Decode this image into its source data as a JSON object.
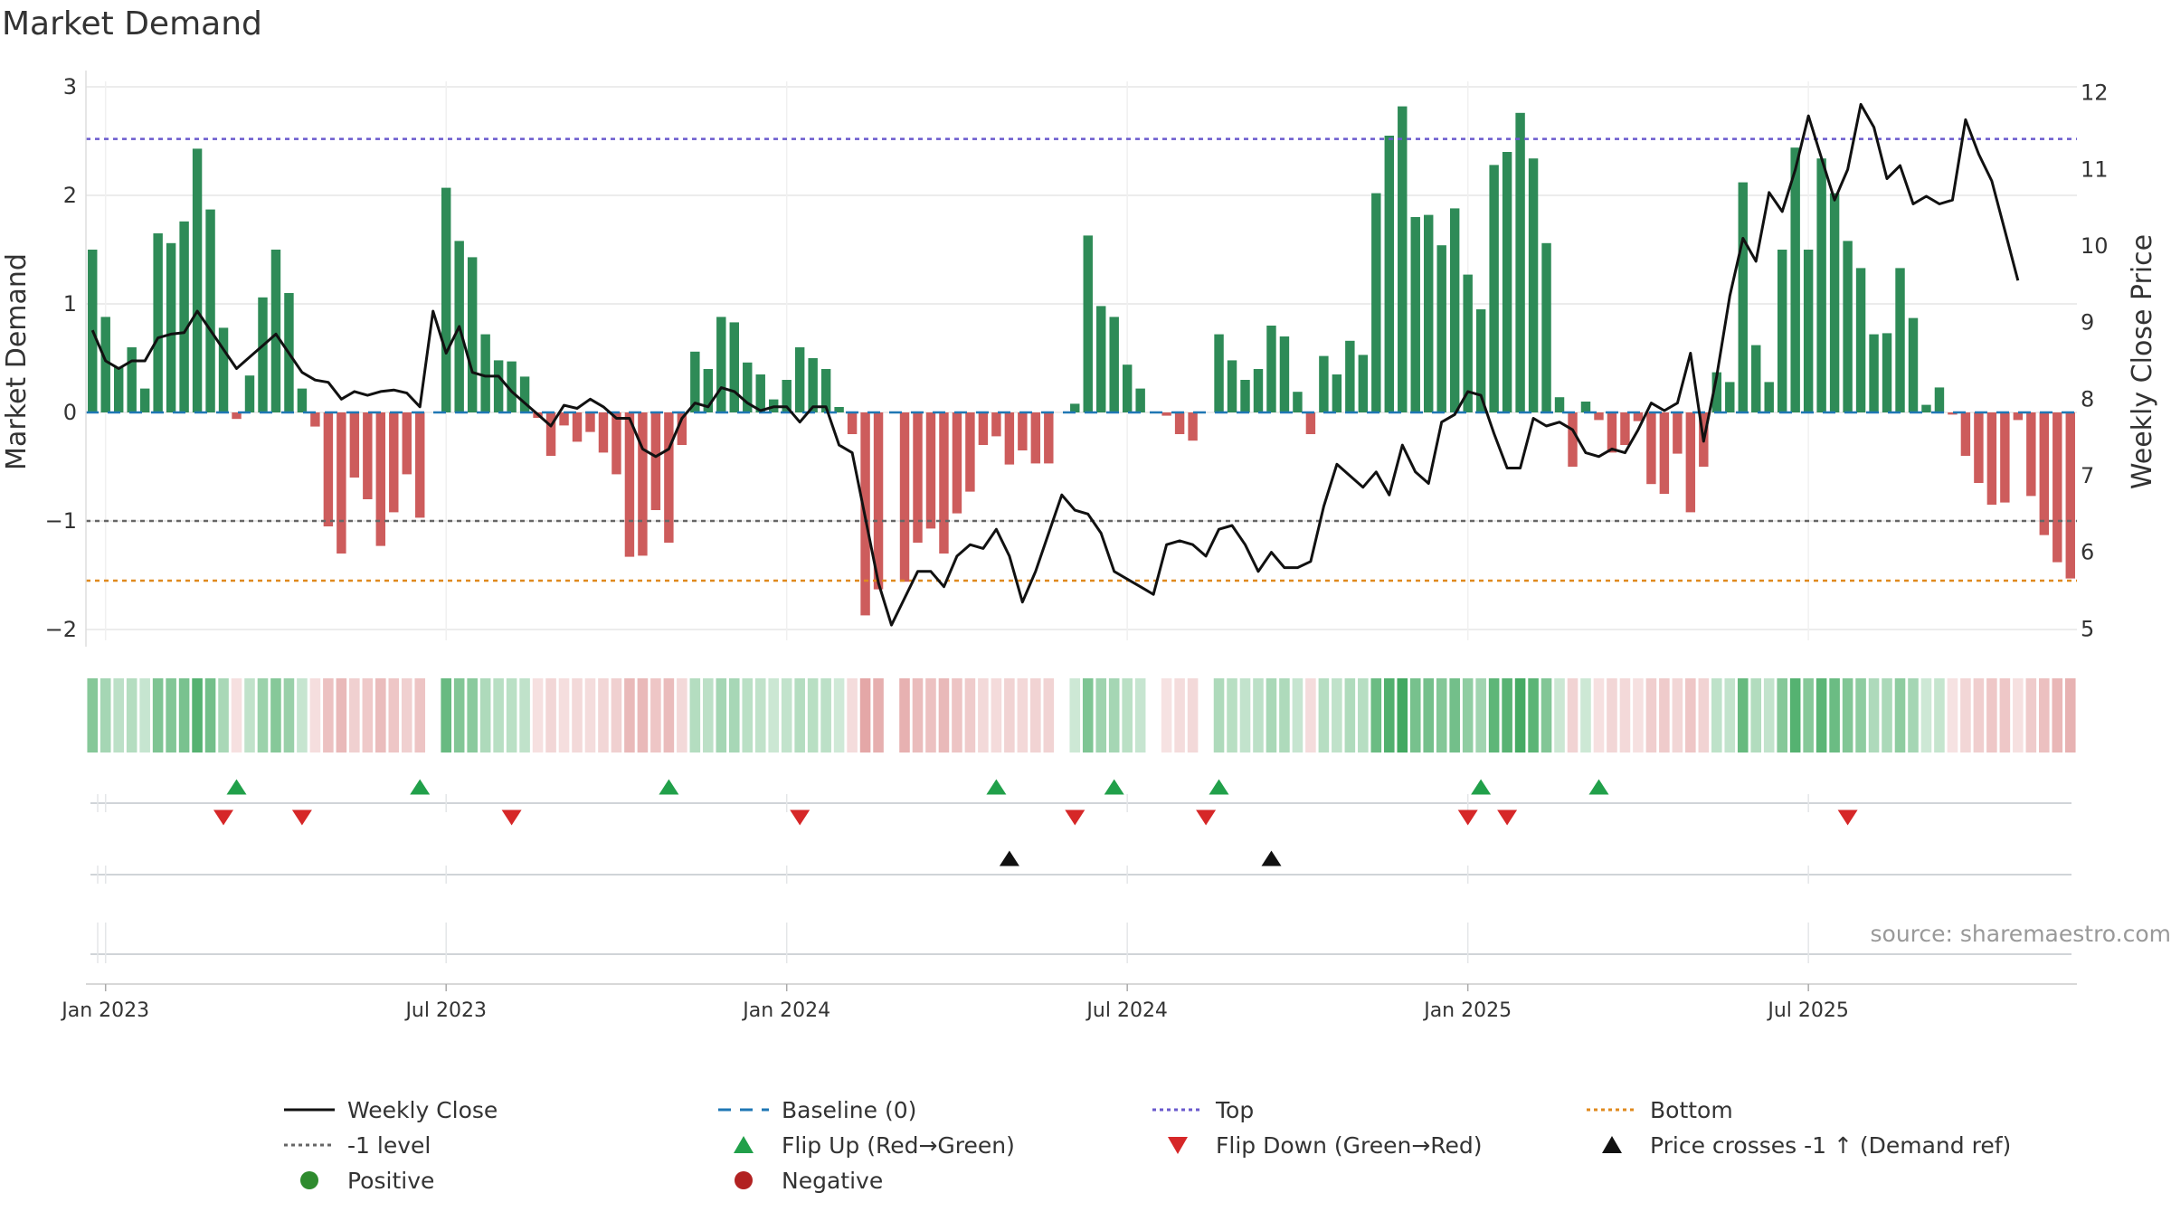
{
  "title": "Market Demand",
  "source": "source: sharemaestro.com",
  "colors": {
    "positive": "#2e8b57",
    "negative": "#cd5c5c",
    "line": "#111111",
    "baseline": "#1f77b4",
    "top": "#6a5acd",
    "bottom": "#e08a1e",
    "level": "#666666",
    "flip_up": "#21a04a",
    "flip_down": "#d62728",
    "cross": "#111111",
    "grid": "#e6e6e6"
  },
  "chart_data": {
    "type": "bar",
    "title": "Market Demand",
    "ylabel": "Market Demand",
    "y2label": "Weekly Close Price",
    "ylim": [
      -2.1,
      3.05
    ],
    "y2lim": [
      4.85,
      12.15
    ],
    "yticks": [
      "3",
      "2",
      "1",
      "0",
      "−1",
      "−2"
    ],
    "y2ticks": [
      "12",
      "11",
      "10",
      "9",
      "8",
      "7",
      "6",
      "5"
    ],
    "xticks": [
      "Jan 2023",
      "Jul 2023",
      "Jan 2024",
      "Jul 2024",
      "Jan 2025",
      "Jul 2025"
    ],
    "xtick_weeks": [
      0,
      26,
      52,
      78,
      104,
      130
    ],
    "first_week_offset": -1,
    "levels": {
      "top": 2.52,
      "baseline": 0,
      "minus_one": -1,
      "bottom": -1.55
    },
    "demand": [
      1.5,
      0.88,
      0.42,
      0.6,
      0.22,
      1.65,
      1.56,
      1.76,
      2.43,
      1.87,
      0.78,
      -0.06,
      0.34,
      1.06,
      1.5,
      1.1,
      0.22,
      -0.13,
      -1.05,
      -1.3,
      -0.6,
      -0.8,
      -1.23,
      -0.92,
      -0.57,
      -0.97,
      0,
      2.07,
      1.58,
      1.43,
      0.72,
      0.48,
      0.47,
      0.33,
      -0.05,
      -0.4,
      -0.12,
      -0.27,
      -0.18,
      -0.37,
      -0.57,
      -1.33,
      -1.32,
      -0.9,
      -1.2,
      -0.3,
      0.56,
      0.4,
      0.88,
      0.83,
      0.46,
      0.35,
      0.12,
      0.3,
      0.6,
      0.5,
      0.4,
      0.05,
      -0.2,
      -1.87,
      -1.63,
      0,
      -1.56,
      -1.2,
      -1.07,
      -1.3,
      -0.93,
      -0.73,
      -0.3,
      -0.22,
      -0.48,
      -0.35,
      -0.47,
      -0.47,
      0,
      0.08,
      1.63,
      0.98,
      0.88,
      0.44,
      0.22,
      0,
      -0.03,
      -0.2,
      -0.26,
      0,
      0.72,
      0.48,
      0.3,
      0.4,
      0.8,
      0.7,
      0.19,
      -0.2,
      0.52,
      0.35,
      0.66,
      0.53,
      2.02,
      2.55,
      2.82,
      1.8,
      1.82,
      1.54,
      1.88,
      1.27,
      0.95,
      2.28,
      2.4,
      2.76,
      2.34,
      1.56,
      0.14,
      -0.5,
      0.1,
      -0.07,
      -0.37,
      -0.3,
      -0.08,
      -0.66,
      -0.75,
      -0.38,
      -0.92,
      -0.5,
      0.37,
      0.28,
      2.12,
      0.62,
      0.28,
      1.5,
      2.44,
      1.5,
      2.34,
      2.02,
      1.58,
      1.33,
      0.72,
      0.73,
      1.33,
      0.87,
      0.07,
      0.23,
      -0.02,
      -0.4,
      -0.65,
      -0.85,
      -0.83,
      -0.07,
      -0.77,
      -1.13,
      -1.38,
      -1.53
    ],
    "close": [
      8.9,
      8.5,
      8.4,
      8.5,
      8.5,
      8.8,
      8.85,
      8.87,
      9.15,
      8.9,
      8.65,
      8.4,
      8.55,
      8.7,
      8.85,
      8.6,
      8.35,
      8.25,
      8.22,
      8.0,
      8.1,
      8.05,
      8.1,
      8.12,
      8.08,
      7.9,
      9.15,
      8.6,
      8.95,
      8.35,
      8.3,
      8.3,
      8.1,
      7.95,
      7.8,
      7.65,
      7.92,
      7.88,
      8.0,
      7.9,
      7.75,
      7.75,
      7.35,
      7.25,
      7.35,
      7.75,
      7.95,
      7.9,
      8.15,
      8.1,
      7.95,
      7.85,
      7.9,
      7.9,
      7.7,
      7.9,
      7.9,
      7.4,
      7.3,
      6.45,
      5.6,
      5.05,
      5.4,
      5.75,
      5.75,
      5.55,
      5.95,
      6.1,
      6.05,
      6.3,
      5.95,
      5.35,
      5.75,
      6.25,
      6.75,
      6.55,
      6.5,
      6.25,
      5.75,
      5.65,
      5.55,
      5.45,
      6.1,
      6.15,
      6.1,
      5.95,
      6.3,
      6.35,
      6.1,
      5.75,
      6.0,
      5.8,
      5.8,
      5.88,
      6.6,
      7.15,
      7.0,
      6.85,
      7.05,
      6.75,
      7.4,
      7.05,
      6.9,
      7.7,
      7.8,
      8.1,
      8.05,
      7.55,
      7.1,
      7.1,
      7.75,
      7.65,
      7.7,
      7.6,
      7.3,
      7.25,
      7.35,
      7.3,
      7.6,
      7.95,
      7.85,
      7.95,
      8.6,
      7.45,
      8.3,
      9.35,
      10.1,
      9.8,
      10.7,
      10.45,
      11.0,
      11.7,
      11.15,
      10.6,
      11.0,
      11.85,
      11.55,
      10.88,
      11.05,
      10.55,
      10.65,
      10.55,
      10.6,
      11.65,
      11.2,
      10.85,
      10.2,
      9.55
    ],
    "flip_up_weeks": [
      11,
      25,
      44,
      69,
      78,
      86,
      106,
      115
    ],
    "flip_down_weeks": [
      10,
      16,
      32,
      54,
      75,
      85,
      105,
      108,
      134
    ],
    "price_cross_weeks": [
      70,
      90
    ]
  },
  "legend": [
    {
      "key": "weekly-close",
      "label": "Weekly Close",
      "sym": "line"
    },
    {
      "key": "baseline",
      "label": "Baseline (0)",
      "sym": "dash"
    },
    {
      "key": "top",
      "label": "Top",
      "sym": "dot-purple"
    },
    {
      "key": "bottom",
      "label": "Bottom",
      "sym": "dot-orange"
    },
    {
      "key": "minus-one",
      "label": "-1 level",
      "sym": "dot-gray"
    },
    {
      "key": "flip-up",
      "label": "Flip Up (Red→Green)",
      "sym": "tri-up-green"
    },
    {
      "key": "flip-down",
      "label": "Flip Down (Green→Red)",
      "sym": "tri-down-red"
    },
    {
      "key": "price-cross",
      "label": "Price crosses -1 ↑ (Demand ref)",
      "sym": "tri-up-black"
    },
    {
      "key": "positive",
      "label": "Positive",
      "sym": "circle-green"
    },
    {
      "key": "negative",
      "label": "Negative",
      "sym": "circle-red"
    }
  ]
}
